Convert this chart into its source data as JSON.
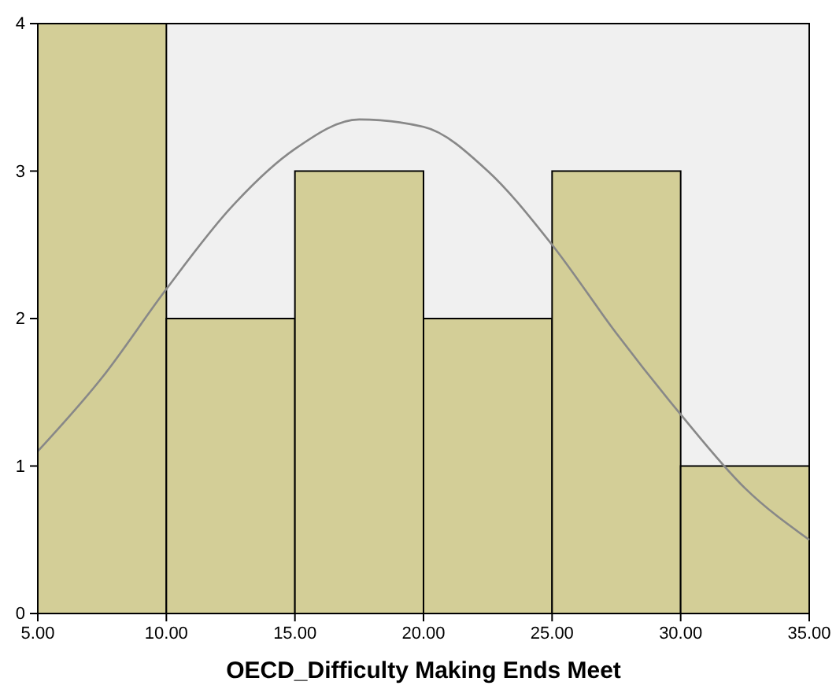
{
  "chart_data": {
    "type": "histogram",
    "xlabel": "OECD_Difficulty Making Ends Meet",
    "series": [
      {
        "color": "#d3ce97",
        "bins": [
          5,
          10,
          15,
          20,
          25,
          30,
          35
        ],
        "values": [
          4,
          2,
          3,
          2,
          3,
          1
        ]
      },
      {
        "type": "line",
        "color": "#888888",
        "x": [
          5,
          7.5,
          10,
          12.5,
          15,
          17.5,
          20,
          22.5,
          25,
          27.5,
          30,
          32.5,
          35
        ],
        "values": [
          1.1,
          1.6,
          2.2,
          2.75,
          3.15,
          3.35,
          3.3,
          3.0,
          2.5,
          1.9,
          1.35,
          0.85,
          0.5
        ]
      }
    ],
    "xlim": [
      5,
      35
    ],
    "ylim": [
      0,
      4
    ],
    "xticks": [
      {
        "value": 5,
        "label": "5.00"
      },
      {
        "value": 10,
        "label": "10.00"
      },
      {
        "value": 15,
        "label": "15.00"
      },
      {
        "value": 20,
        "label": "20.00"
      },
      {
        "value": 25,
        "label": "25.00"
      },
      {
        "value": 30,
        "label": "30.00"
      },
      {
        "value": 35,
        "label": "35.00"
      }
    ],
    "yticks": [
      0,
      1,
      2,
      3,
      4
    ],
    "grid": false
  }
}
